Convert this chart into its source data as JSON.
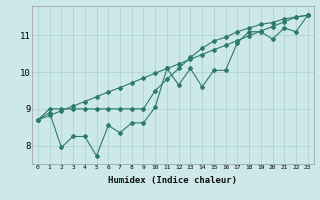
{
  "xlabel": "Humidex (Indice chaleur)",
  "ylabel": "",
  "bg_color": "#cce8e8",
  "grid_color": "#aacfcf",
  "line_color": "#2d7a6a",
  "x_data": [
    0,
    1,
    2,
    3,
    4,
    5,
    6,
    7,
    8,
    9,
    10,
    11,
    12,
    13,
    14,
    15,
    16,
    17,
    18,
    19,
    20,
    21,
    22,
    23
  ],
  "y_zigzag": [
    8.7,
    8.9,
    7.95,
    8.25,
    8.25,
    7.72,
    8.55,
    8.35,
    8.62,
    8.62,
    9.05,
    10.1,
    9.65,
    10.1,
    9.6,
    10.05,
    10.05,
    10.8,
    11.1,
    11.1,
    10.9,
    11.2,
    11.1,
    11.55
  ],
  "y_flat": [
    8.7,
    9.0,
    9.0,
    9.0,
    9.0,
    9.0,
    9.0,
    9.0,
    9.0,
    9.0,
    9.5,
    9.8,
    10.1,
    10.4,
    10.65,
    10.85,
    10.95,
    11.1,
    11.2,
    11.3,
    11.35,
    11.45,
    11.5,
    11.55
  ],
  "y_linear": [
    8.7,
    8.82,
    8.95,
    9.08,
    9.2,
    9.33,
    9.46,
    9.58,
    9.71,
    9.84,
    9.97,
    10.1,
    10.22,
    10.35,
    10.48,
    10.61,
    10.73,
    10.86,
    10.99,
    11.12,
    11.24,
    11.37,
    11.5,
    11.55
  ],
  "ylim": [
    7.5,
    11.8
  ],
  "xlim": [
    -0.5,
    23.5
  ],
  "yticks": [
    8,
    9,
    10,
    11
  ],
  "xticks": [
    0,
    1,
    2,
    3,
    4,
    5,
    6,
    7,
    8,
    9,
    10,
    11,
    12,
    13,
    14,
    15,
    16,
    17,
    18,
    19,
    20,
    21,
    22,
    23
  ]
}
